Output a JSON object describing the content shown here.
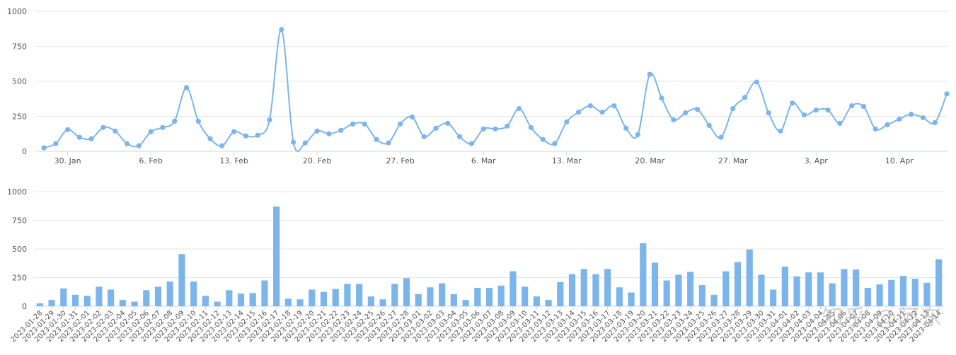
{
  "watermark": "知乎 @阿东",
  "colors": {
    "line": "#7cb5ec",
    "bar": "#7cb5ec",
    "grid": "#e6e6e6",
    "axis": "#ccd6eb"
  },
  "chart_data": [
    {
      "type": "line",
      "title": "",
      "xlabel": "",
      "ylabel": "",
      "ylim": [
        0,
        1000
      ],
      "y_ticks": [
        "0",
        "250",
        "500",
        "750",
        "1000"
      ],
      "x_ticks": [
        {
          "date": "2023-01-30",
          "label": "30. Jan"
        },
        {
          "date": "2023-02-06",
          "label": "6. Feb"
        },
        {
          "date": "2023-02-13",
          "label": "13. Feb"
        },
        {
          "date": "2023-02-20",
          "label": "20. Feb"
        },
        {
          "date": "2023-02-27",
          "label": "27. Feb"
        },
        {
          "date": "2023-03-06",
          "label": "6. Mar"
        },
        {
          "date": "2023-03-13",
          "label": "13. Mar"
        },
        {
          "date": "2023-03-20",
          "label": "20. Mar"
        },
        {
          "date": "2023-03-27",
          "label": "27. Mar"
        },
        {
          "date": "2023-04-03",
          "label": "3. Apr"
        },
        {
          "date": "2023-04-10",
          "label": "10. Apr"
        }
      ],
      "grid": true,
      "smooth": true,
      "markers": true
    },
    {
      "type": "bar",
      "title": "",
      "xlabel": "",
      "ylabel": "",
      "ylim": [
        0,
        1000
      ],
      "y_ticks": [
        "0",
        "250",
        "500",
        "750",
        "1000"
      ],
      "grid": true,
      "categories": [
        "2023-01-28",
        "2023-01-29",
        "2023-01-30",
        "2023-01-31",
        "2023-02-01",
        "2023-02-02",
        "2023-02-03",
        "2023-02-04",
        "2023-02-05",
        "2023-02-06",
        "2023-02-07",
        "2023-02-08",
        "2023-02-09",
        "2023-02-10",
        "2023-02-11",
        "2023-02-12",
        "2023-02-13",
        "2023-02-14",
        "2023-02-15",
        "2023-02-16",
        "2023-02-17",
        "2023-02-18",
        "2023-02-19",
        "2023-02-20",
        "2023-02-21",
        "2023-02-22",
        "2023-02-23",
        "2023-02-24",
        "2023-02-25",
        "2023-02-26",
        "2023-02-27",
        "2023-02-28",
        "2023-03-01",
        "2023-03-02",
        "2023-03-03",
        "2023-03-04",
        "2023-03-05",
        "2023-03-06",
        "2023-03-07",
        "2023-03-08",
        "2023-03-09",
        "2023-03-10",
        "2023-03-11",
        "2023-03-12",
        "2023-03-13",
        "2023-03-14",
        "2023-03-15",
        "2023-03-16",
        "2023-03-17",
        "2023-03-18",
        "2023-03-19",
        "2023-03-20",
        "2023-03-21",
        "2023-03-22",
        "2023-03-23",
        "2023-03-24",
        "2023-03-25",
        "2023-03-26",
        "2023-03-27",
        "2023-03-28",
        "2023-03-29",
        "2023-03-30",
        "2023-03-31",
        "2023-04-01",
        "2023-04-02",
        "2023-04-03",
        "2023-04-04",
        "2023-04-05",
        "2023-04-06",
        "2023-04-07",
        "2023-04-08",
        "2023-04-09",
        "2023-04-10",
        "2023-04-11",
        "2023-04-12",
        "2023-04-13",
        "2023-04-14"
      ],
      "values": [
        25,
        55,
        155,
        100,
        90,
        170,
        145,
        55,
        40,
        140,
        170,
        215,
        455,
        215,
        90,
        40,
        140,
        110,
        115,
        225,
        870,
        65,
        60,
        145,
        125,
        150,
        195,
        195,
        85,
        60,
        195,
        245,
        105,
        165,
        200,
        105,
        55,
        160,
        160,
        180,
        305,
        170,
        85,
        55,
        210,
        280,
        325,
        280,
        325,
        165,
        120,
        550,
        380,
        225,
        275,
        300,
        185,
        100,
        305,
        385,
        495,
        275,
        145,
        345,
        260,
        295,
        295,
        200,
        325,
        320,
        160,
        190,
        230,
        265,
        240,
        205,
        410
      ]
    }
  ]
}
